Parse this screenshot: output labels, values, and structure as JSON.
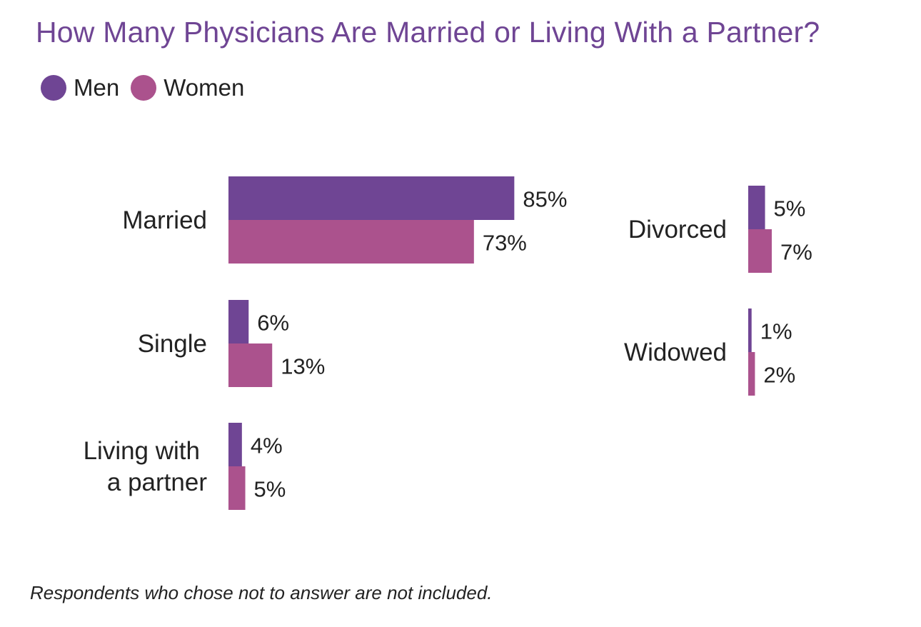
{
  "chart_data": {
    "type": "bar",
    "orientation": "horizontal",
    "title": "How Many Physicians Are Married or Living With a Partner?",
    "categories": [
      "Married",
      "Single",
      "Living with a partner",
      "Divorced",
      "Widowed"
    ],
    "category_lines": [
      [
        "Married"
      ],
      [
        "Single"
      ],
      [
        "Living with",
        "a partner"
      ],
      [
        "Divorced"
      ],
      [
        "Widowed"
      ]
    ],
    "series": [
      {
        "name": "Men",
        "values": [
          85,
          6,
          4,
          5,
          1
        ],
        "color": "#6f4594"
      },
      {
        "name": "Women",
        "values": [
          73,
          13,
          5,
          7,
          2
        ],
        "color": "#ab528d"
      }
    ],
    "value_labels": [
      [
        "85%",
        "6%",
        "4%",
        "5%",
        "1%"
      ],
      [
        "73%",
        "13%",
        "5%",
        "7%",
        "2%"
      ]
    ],
    "unit": "%",
    "legend_position": "top-left",
    "grid": false,
    "footnote": "Respondents who chose not to answer are not included."
  },
  "colors": {
    "title": "#6f4594",
    "men": "#6f4594",
    "women": "#ab528d",
    "text": "#222222"
  }
}
